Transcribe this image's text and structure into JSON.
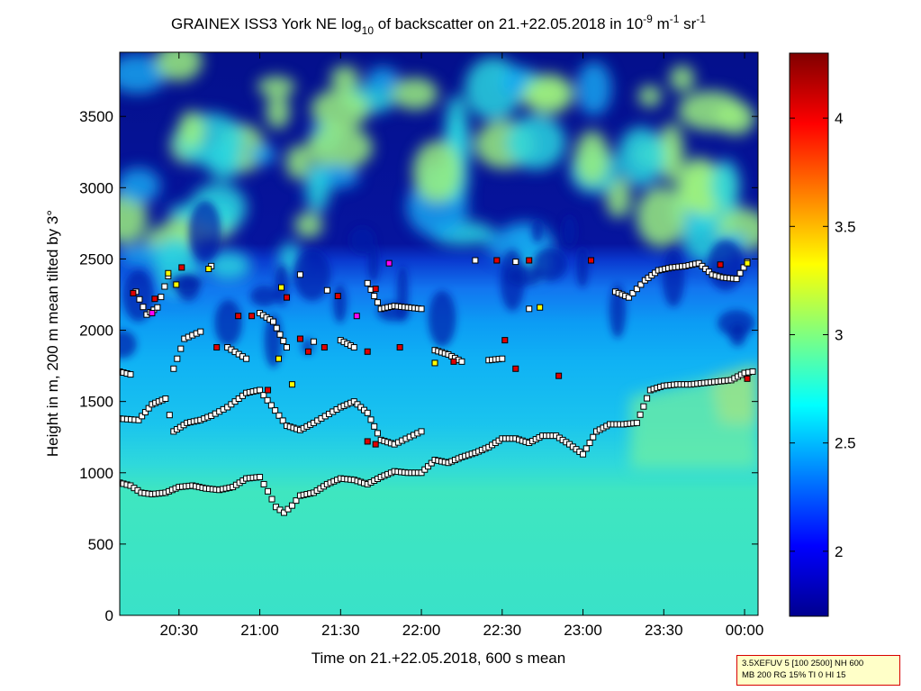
{
  "chart_data": {
    "type": "heatmap",
    "title": {
      "prefix": "GRAINEX ISS3 York NE log",
      "sub": "10",
      "middle": " of backscatter on 21.+22.05.2018 in 10",
      "sup1": "-9",
      "unit1": " m",
      "sup2": "-1",
      "unit2": " sr",
      "sup3": "-1"
    },
    "xlabel": "Time on 21.+22.05.2018, 600 s mean",
    "ylabel": "Height in m, 200 m mean tilted by 3°",
    "x_range": [
      "20:08",
      "00:05"
    ],
    "y_range": [
      0,
      3950
    ],
    "x_ticks": [
      "20:30",
      "21:00",
      "21:30",
      "22:00",
      "22:30",
      "23:00",
      "23:30",
      "00:00"
    ],
    "y_ticks": [
      0,
      500,
      1000,
      1500,
      2000,
      2500,
      3000,
      3500
    ],
    "colorbar": {
      "range": [
        1.7,
        4.3
      ],
      "ticks": [
        2,
        2.5,
        3,
        3.5,
        4
      ],
      "colormap": "jet"
    },
    "field_summary": {
      "surface_value": 2.85,
      "boundary_layer_value": 2.7,
      "free_troposphere_value": 1.7,
      "late_surface_layer_value": 3.0
    },
    "series": [
      {
        "x": [
          "20:08",
          "20:12",
          "20:16",
          "20:20",
          "20:25",
          "20:30",
          "20:35",
          "20:40",
          "20:45",
          "20:50",
          "20:55",
          "21:00",
          "21:03",
          "21:06",
          "21:09",
          "21:12",
          "21:15",
          "21:20",
          "21:25",
          "21:30",
          "21:35",
          "21:40",
          "21:45",
          "21:50",
          "21:55",
          "22:00",
          "22:05",
          "22:10",
          "22:15",
          "22:20",
          "22:25",
          "22:30",
          "22:35",
          "22:40",
          "22:45",
          "22:50",
          "22:55",
          "23:00",
          "23:05",
          "23:10",
          "23:15",
          "23:20",
          "23:25",
          "23:30",
          "23:35",
          "23:40",
          "23:45",
          "23:50",
          "23:55",
          "00:00",
          "00:03"
        ],
        "y": [
          930,
          910,
          860,
          850,
          860,
          900,
          910,
          890,
          880,
          900,
          960,
          970,
          870,
          760,
          720,
          770,
          840,
          860,
          920,
          960,
          950,
          920,
          970,
          1010,
          1000,
          1000,
          1090,
          1070,
          1110,
          1140,
          1180,
          1240,
          1240,
          1210,
          1260,
          1260,
          1200,
          1130,
          1290,
          1340,
          1340,
          1350,
          1580,
          1610,
          1620,
          1620,
          1630,
          1640,
          1650,
          1700,
          1710
        ]
      },
      {
        "x": [
          "20:08",
          "20:15",
          "20:20",
          "20:25",
          "20:28",
          "20:33",
          "20:38",
          "20:42",
          "20:48",
          "20:55",
          "21:00",
          "21:10",
          "21:15",
          "21:20",
          "21:30",
          "21:35",
          "21:40",
          "21:45",
          "21:50",
          "22:00"
        ],
        "y": [
          1380,
          1370,
          1480,
          1520,
          1290,
          1350,
          1370,
          1400,
          1460,
          1560,
          1580,
          1330,
          1300,
          1350,
          1460,
          1500,
          1420,
          1230,
          1200,
          1290
        ]
      },
      {
        "x": [
          "20:08",
          "20:12",
          "20:14",
          "20:18",
          "20:22",
          "20:26",
          "20:28",
          "20:32",
          "20:38",
          "20:42",
          "20:48",
          "20:55",
          "21:00",
          "21:05",
          "21:10",
          "21:15",
          "21:20",
          "21:25",
          "21:30",
          "21:35",
          "21:40",
          "21:45",
          "21:50",
          "21:55",
          "22:00",
          "22:05",
          "22:10",
          "22:15",
          "22:20",
          "22:25",
          "22:30",
          "22:35",
          "22:40"
        ],
        "y": [
          1710,
          1690,
          2270,
          2110,
          2160,
          2380,
          1730,
          1940,
          1990,
          2450,
          1880,
          1800,
          2120,
          2060,
          1880,
          2390,
          1920,
          2280,
          1930,
          1880,
          2330,
          2150,
          2170,
          2160,
          2150,
          1860,
          1830,
          1780,
          2490,
          1790,
          1800,
          2480,
          2150
        ]
      },
      {
        "x": [
          "23:12",
          "23:17",
          "23:23",
          "23:28",
          "23:33",
          "23:38",
          "23:43",
          "23:48",
          "23:52",
          "23:57",
          "00:01"
        ],
        "y": [
          2270,
          2230,
          2350,
          2420,
          2440,
          2450,
          2470,
          2390,
          2370,
          2360,
          2480
        ]
      }
    ],
    "markers": [
      {
        "x": "20:13",
        "y": 2260,
        "color": "#e00000"
      },
      {
        "x": "20:21",
        "y": 2220,
        "color": "#e00000"
      },
      {
        "x": "20:26",
        "y": 2400,
        "color": "#ffff00"
      },
      {
        "x": "20:31",
        "y": 2440,
        "color": "#e00000"
      },
      {
        "x": "20:41",
        "y": 2430,
        "color": "#ffff00"
      },
      {
        "x": "20:44",
        "y": 1880,
        "color": "#e00000"
      },
      {
        "x": "20:52",
        "y": 2100,
        "color": "#e00000"
      },
      {
        "x": "20:57",
        "y": 2100,
        "color": "#e00000"
      },
      {
        "x": "21:03",
        "y": 1580,
        "color": "#e00000"
      },
      {
        "x": "21:07",
        "y": 1800,
        "color": "#ffff00"
      },
      {
        "x": "21:08",
        "y": 2300,
        "color": "#ffff00"
      },
      {
        "x": "21:10",
        "y": 2230,
        "color": "#e00000"
      },
      {
        "x": "21:12",
        "y": 1620,
        "color": "#ffff00"
      },
      {
        "x": "21:15",
        "y": 1940,
        "color": "#e00000"
      },
      {
        "x": "21:18",
        "y": 1850,
        "color": "#e00000"
      },
      {
        "x": "21:24",
        "y": 1880,
        "color": "#e00000"
      },
      {
        "x": "21:29",
        "y": 2240,
        "color": "#e00000"
      },
      {
        "x": "21:36",
        "y": 2100,
        "color": "#ff00ff"
      },
      {
        "x": "21:40",
        "y": 1850,
        "color": "#e00000"
      },
      {
        "x": "21:43",
        "y": 2290,
        "color": "#e00000"
      },
      {
        "x": "21:48",
        "y": 2470,
        "color": "#ff00ff"
      },
      {
        "x": "21:52",
        "y": 1880,
        "color": "#e00000"
      },
      {
        "x": "22:05",
        "y": 1770,
        "color": "#ffff00"
      },
      {
        "x": "22:12",
        "y": 1780,
        "color": "#e00000"
      },
      {
        "x": "22:28",
        "y": 2490,
        "color": "#e00000"
      },
      {
        "x": "22:31",
        "y": 1930,
        "color": "#e00000"
      },
      {
        "x": "22:35",
        "y": 1730,
        "color": "#e00000"
      },
      {
        "x": "22:40",
        "y": 2490,
        "color": "#e00000"
      },
      {
        "x": "22:44",
        "y": 2160,
        "color": "#ffff00"
      },
      {
        "x": "22:51",
        "y": 1680,
        "color": "#e00000"
      },
      {
        "x": "21:40",
        "y": 1220,
        "color": "#e00000"
      },
      {
        "x": "21:43",
        "y": 1200,
        "color": "#e00000"
      },
      {
        "x": "20:20",
        "y": 2120,
        "color": "#ff00ff"
      },
      {
        "x": "20:29",
        "y": 2320,
        "color": "#ffff00"
      },
      {
        "x": "23:03",
        "y": 2490,
        "color": "#e00000"
      },
      {
        "x": "23:51",
        "y": 2460,
        "color": "#e00000"
      },
      {
        "x": "00:01",
        "y": 2470,
        "color": "#ffff00"
      },
      {
        "x": "00:01",
        "y": 1660,
        "color": "#e00000"
      }
    ],
    "grid": false,
    "legend": "none"
  },
  "param_box": {
    "line1": "3.5XEFUV 5 [100 2500] NH 600",
    "line2": "MB 200 RG 15% TI 0 HI 15"
  }
}
